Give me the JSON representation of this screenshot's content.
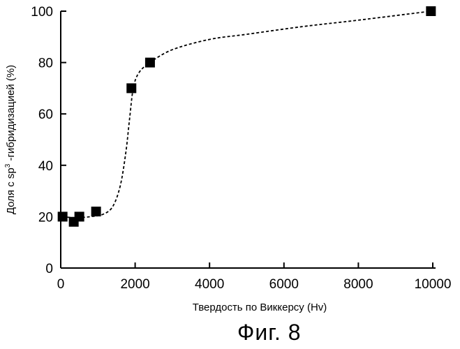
{
  "chart_data": {
    "type": "scatter",
    "title": "",
    "xlabel": "Твердость по Виккерсу (Hv)",
    "ylabel_prefix": "Доля с sp",
    "ylabel_superscript": "3",
    "ylabel_suffix": " -гибридизацией (%)",
    "xlim": [
      0,
      10000
    ],
    "ylim": [
      0,
      100
    ],
    "x_ticks": [
      0,
      2000,
      4000,
      6000,
      8000,
      10000
    ],
    "y_ticks": [
      0,
      20,
      40,
      60,
      80,
      100
    ],
    "grid": false,
    "series": [
      {
        "marker": "filled-square",
        "points": [
          {
            "x": 50,
            "y": 20
          },
          {
            "x": 350,
            "y": 18
          },
          {
            "x": 500,
            "y": 20
          },
          {
            "x": 950,
            "y": 22
          },
          {
            "x": 1900,
            "y": 70
          },
          {
            "x": 2400,
            "y": 80
          },
          {
            "x": 9950,
            "y": 100
          }
        ]
      }
    ],
    "trend_line": {
      "style": "dashed",
      "points": [
        {
          "x": 50,
          "y": 20
        },
        {
          "x": 400,
          "y": 19.6
        },
        {
          "x": 800,
          "y": 20
        },
        {
          "x": 1150,
          "y": 21
        },
        {
          "x": 1400,
          "y": 24
        },
        {
          "x": 1600,
          "y": 32
        },
        {
          "x": 1750,
          "y": 45
        },
        {
          "x": 1850,
          "y": 58
        },
        {
          "x": 1950,
          "y": 70
        },
        {
          "x": 2100,
          "y": 76
        },
        {
          "x": 2400,
          "y": 80
        },
        {
          "x": 3000,
          "y": 85
        },
        {
          "x": 4000,
          "y": 89
        },
        {
          "x": 5000,
          "y": 91
        },
        {
          "x": 6500,
          "y": 94
        },
        {
          "x": 8000,
          "y": 96.5
        },
        {
          "x": 9950,
          "y": 100
        }
      ]
    },
    "colors": {
      "ink": "#000000",
      "background": "#ffffff"
    }
  },
  "caption": "Фиг. 8"
}
